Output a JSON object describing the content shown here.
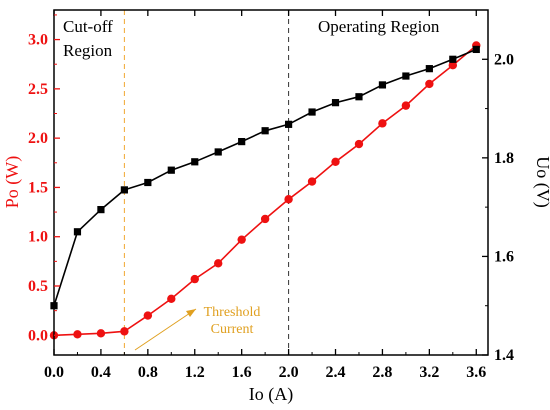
{
  "chart_data": {
    "type": "line",
    "xlabel": "Io (A)",
    "ylabel_left": "Po (W)",
    "ylabel_right": "Uo (V)",
    "xlim": [
      0,
      3.7
    ],
    "ylim_left": [
      -0.2,
      3.3
    ],
    "ylim_right": [
      1.4,
      2.1
    ],
    "x_ticks": [
      "0.0",
      "0.4",
      "0.8",
      "1.2",
      "1.6",
      "2.0",
      "2.4",
      "2.8",
      "3.2",
      "3.6"
    ],
    "y_left_ticks": [
      "0.0",
      "0.5",
      "1.0",
      "1.5",
      "2.0",
      "2.5",
      "3.0"
    ],
    "y_right_ticks": [
      "1.4",
      "1.6",
      "1.8",
      "2.0"
    ],
    "series": [
      {
        "axis": "left",
        "color": "#ee1111",
        "marker": "circle",
        "x": [
          0.0,
          0.2,
          0.4,
          0.6,
          0.8,
          1.0,
          1.2,
          1.4,
          1.6,
          1.8,
          2.0,
          2.2,
          2.4,
          2.6,
          2.8,
          3.0,
          3.2,
          3.4,
          3.6
        ],
        "y": [
          0.0,
          0.01,
          0.02,
          0.04,
          0.2,
          0.37,
          0.57,
          0.73,
          0.97,
          1.18,
          1.38,
          1.56,
          1.76,
          1.94,
          2.15,
          2.33,
          2.55,
          2.74,
          2.94
        ]
      },
      {
        "axis": "right",
        "color": "#000000",
        "marker": "square",
        "x": [
          0.0,
          0.2,
          0.4,
          0.6,
          0.8,
          1.0,
          1.2,
          1.4,
          1.6,
          1.8,
          2.0,
          2.2,
          2.4,
          2.6,
          2.8,
          3.0,
          3.2,
          3.4,
          3.6
        ],
        "y": [
          1.5,
          1.65,
          1.695,
          1.735,
          1.75,
          1.775,
          1.792,
          1.812,
          1.833,
          1.855,
          1.868,
          1.893,
          1.912,
          1.924,
          1.948,
          1.966,
          1.981,
          2.0,
          2.02
        ]
      }
    ],
    "vlines": [
      {
        "x": 0.6,
        "color": "#f0a830",
        "style": "dashed"
      },
      {
        "x": 2.0,
        "color": "#333333",
        "style": "dashed"
      }
    ],
    "annotations": {
      "cutoff_line1": "Cut-off",
      "cutoff_line2": "Region",
      "operating": "Operating Region",
      "threshold_line1": "Threshold",
      "threshold_line2": "Current"
    },
    "colors": {
      "left_axis": "#ee1111",
      "threshold": "#e0a020"
    }
  }
}
